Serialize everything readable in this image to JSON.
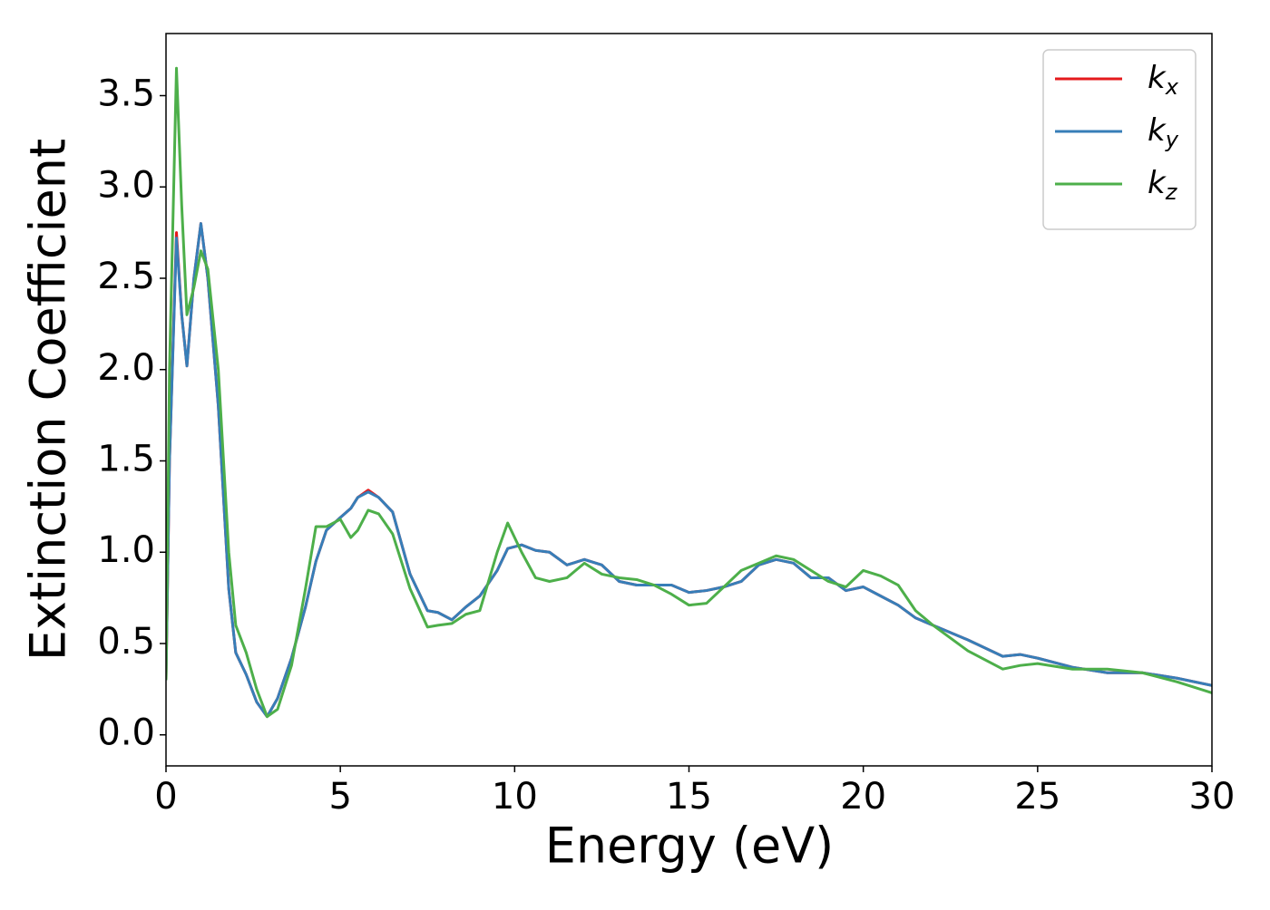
{
  "chart_data": {
    "type": "line",
    "x_label": "Energy (eV)",
    "y_label": "Extinction Coefficient",
    "xlim": [
      0,
      30
    ],
    "ylim": [
      -0.17,
      3.84
    ],
    "xticks": [
      0,
      5,
      10,
      15,
      20,
      25,
      30
    ],
    "yticks": [
      {
        "value": 0,
        "label": "0.0"
      },
      0.5,
      {
        "value": 1,
        "label": "1.0"
      },
      1.5,
      {
        "value": 2,
        "label": "2.0"
      },
      2.5,
      {
        "value": 3,
        "label": "3.0"
      },
      3.5
    ],
    "legend": "upper right",
    "grid": false,
    "x": [
      0,
      0.1,
      0.3,
      0.45,
      0.6,
      0.8,
      1.0,
      1.2,
      1.5,
      1.8,
      2.0,
      2.3,
      2.6,
      2.9,
      3.2,
      3.6,
      4.0,
      4.3,
      4.6,
      5.0,
      5.3,
      5.5,
      5.8,
      6.1,
      6.5,
      7.0,
      7.5,
      7.8,
      8.2,
      8.6,
      9.0,
      9.5,
      9.8,
      10.2,
      10.6,
      11.0,
      11.5,
      12.0,
      12.5,
      13.0,
      13.5,
      14.0,
      14.5,
      15.0,
      15.5,
      16.0,
      16.5,
      17.0,
      17.5,
      18.0,
      18.5,
      19.0,
      19.5,
      20.0,
      20.5,
      21.0,
      21.5,
      22.0,
      23.0,
      24.0,
      24.5,
      25.0,
      26.0,
      27.0,
      28.0,
      29.0,
      30.0
    ],
    "series": [
      {
        "name": "kx",
        "color": "#e41a1c",
        "values": [
          0.3,
          1.5,
          2.75,
          2.3,
          2.02,
          2.5,
          2.8,
          2.5,
          1.8,
          0.8,
          0.45,
          0.33,
          0.18,
          0.1,
          0.2,
          0.42,
          0.7,
          0.95,
          1.12,
          1.19,
          1.24,
          1.3,
          1.34,
          1.3,
          1.22,
          0.88,
          0.68,
          0.67,
          0.63,
          0.7,
          0.76,
          0.9,
          1.02,
          1.04,
          1.01,
          1.0,
          0.93,
          0.96,
          0.93,
          0.84,
          0.82,
          0.82,
          0.82,
          0.78,
          0.79,
          0.81,
          0.84,
          0.93,
          0.96,
          0.94,
          0.86,
          0.86,
          0.79,
          0.81,
          0.76,
          0.71,
          0.64,
          0.6,
          0.52,
          0.43,
          0.44,
          0.42,
          0.37,
          0.34,
          0.34,
          0.31,
          0.27
        ]
      },
      {
        "name": "ky",
        "color": "#377eb8",
        "values": [
          0.3,
          1.5,
          2.72,
          2.3,
          2.02,
          2.5,
          2.8,
          2.5,
          1.8,
          0.8,
          0.45,
          0.33,
          0.18,
          0.1,
          0.2,
          0.42,
          0.7,
          0.95,
          1.12,
          1.19,
          1.24,
          1.3,
          1.33,
          1.3,
          1.22,
          0.88,
          0.68,
          0.67,
          0.63,
          0.7,
          0.76,
          0.9,
          1.02,
          1.04,
          1.01,
          1.0,
          0.93,
          0.96,
          0.93,
          0.84,
          0.82,
          0.82,
          0.82,
          0.78,
          0.79,
          0.81,
          0.84,
          0.93,
          0.96,
          0.94,
          0.86,
          0.86,
          0.79,
          0.81,
          0.76,
          0.71,
          0.64,
          0.6,
          0.52,
          0.43,
          0.44,
          0.42,
          0.37,
          0.34,
          0.34,
          0.31,
          0.27
        ]
      },
      {
        "name": "kz",
        "color": "#4daf4a",
        "values": [
          0.3,
          2.0,
          3.65,
          2.9,
          2.3,
          2.45,
          2.65,
          2.55,
          2.0,
          1.0,
          0.6,
          0.45,
          0.25,
          0.1,
          0.14,
          0.38,
          0.8,
          1.14,
          1.14,
          1.18,
          1.08,
          1.12,
          1.23,
          1.21,
          1.1,
          0.8,
          0.59,
          0.6,
          0.61,
          0.66,
          0.68,
          1.0,
          1.16,
          1.0,
          0.86,
          0.84,
          0.86,
          0.94,
          0.88,
          0.86,
          0.85,
          0.82,
          0.77,
          0.71,
          0.72,
          0.81,
          0.9,
          0.94,
          0.98,
          0.96,
          0.9,
          0.84,
          0.81,
          0.9,
          0.87,
          0.82,
          0.68,
          0.6,
          0.46,
          0.36,
          0.38,
          0.39,
          0.36,
          0.36,
          0.34,
          0.29,
          0.23
        ]
      }
    ]
  }
}
